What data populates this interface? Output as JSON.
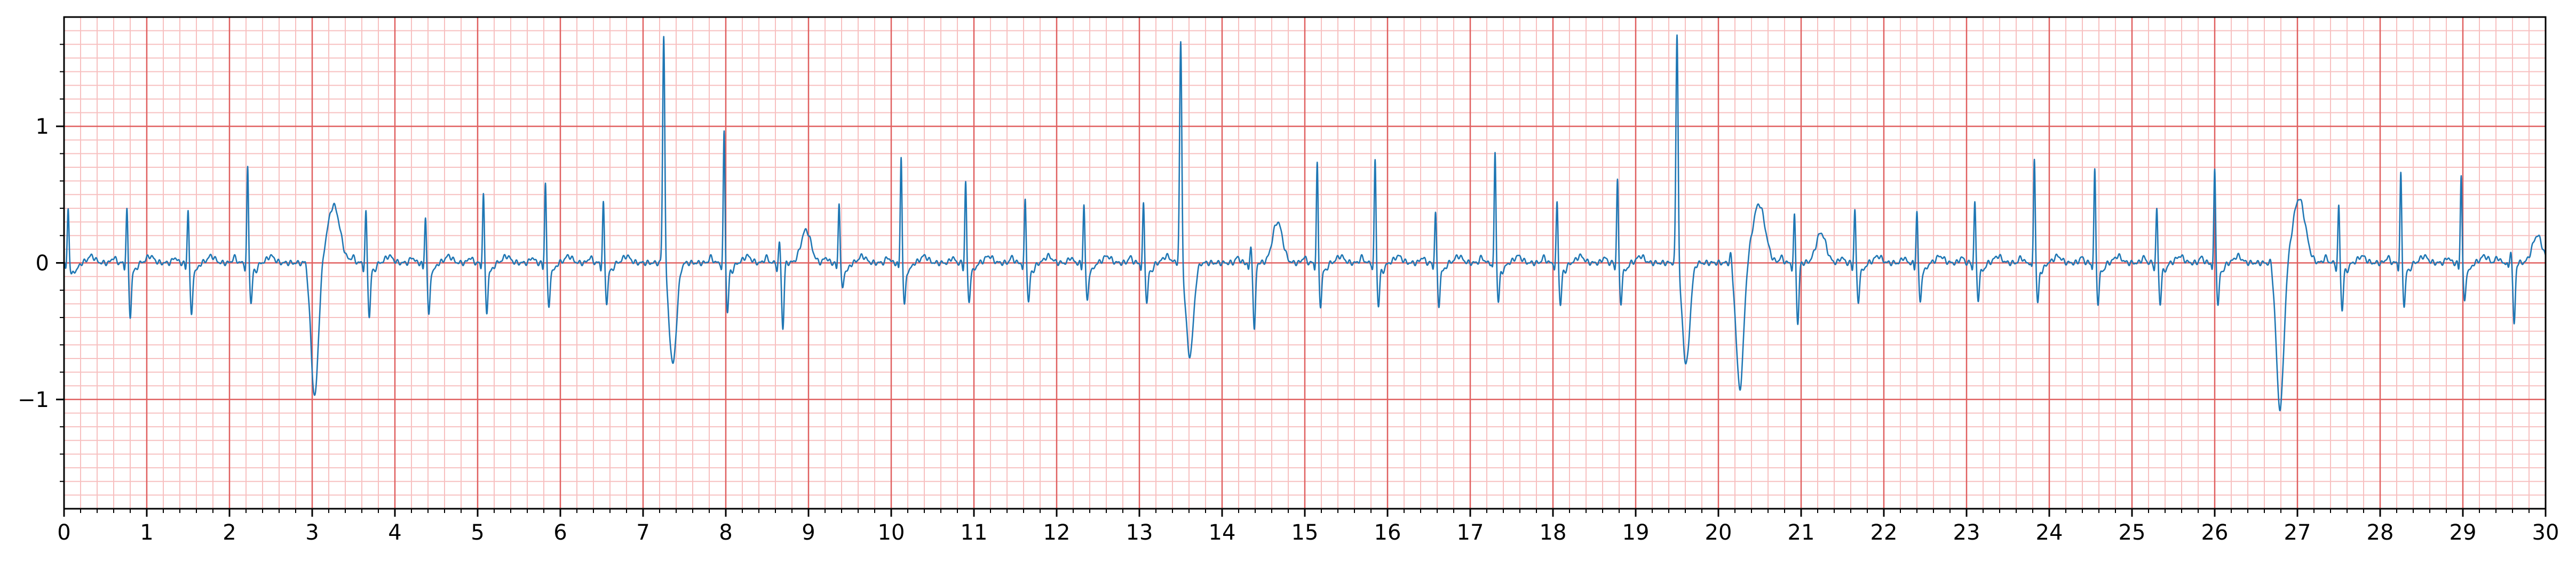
{
  "chart_data": {
    "type": "line",
    "title": "",
    "xlabel": "",
    "ylabel": "",
    "xlim": [
      0,
      30
    ],
    "ylim": [
      -1.8,
      1.8
    ],
    "x_ticks": [
      0,
      1,
      2,
      3,
      4,
      5,
      6,
      7,
      8,
      9,
      10,
      11,
      12,
      13,
      14,
      15,
      16,
      17,
      18,
      19,
      20,
      21,
      22,
      23,
      24,
      25,
      26,
      27,
      28,
      29,
      30
    ],
    "x_tick_labels": [
      "0",
      "1",
      "2",
      "3",
      "4",
      "5",
      "6",
      "7",
      "8",
      "9",
      "10",
      "11",
      "12",
      "13",
      "14",
      "15",
      "16",
      "17",
      "18",
      "19",
      "20",
      "21",
      "22",
      "23",
      "24",
      "25",
      "26",
      "27",
      "28",
      "29",
      "30"
    ],
    "y_ticks": [
      -1,
      0,
      1
    ],
    "y_tick_labels": [
      "−1",
      "0",
      "1"
    ],
    "grid": {
      "major": true,
      "minor": true,
      "major_x_step": 1,
      "major_y_step": 1,
      "minor_x_step": 0.2,
      "minor_y_step": 0.1,
      "major_color": "#e06060",
      "minor_color": "#f7c0c0"
    },
    "series": [
      {
        "color": "#1f77b4",
        "beats": [
          {
            "t": 0.05,
            "kind": "normal",
            "r": 0.4,
            "s": -0.08
          },
          {
            "t": 0.76,
            "kind": "normal",
            "r": 0.4,
            "s": -0.38
          },
          {
            "t": 1.5,
            "kind": "normal",
            "r": 0.4,
            "s": -0.38
          },
          {
            "t": 2.22,
            "kind": "normal",
            "r": 0.7,
            "s": -0.28
          },
          {
            "t": 2.92,
            "kind": "pvc",
            "r": 0.05,
            "s": -0.98,
            "t_wave": 0.42
          },
          {
            "t": 3.65,
            "kind": "normal",
            "r": 0.37,
            "s": -0.38
          },
          {
            "t": 4.37,
            "kind": "normal",
            "r": 0.34,
            "s": -0.38
          },
          {
            "t": 5.07,
            "kind": "normal",
            "r": 0.52,
            "s": -0.35
          },
          {
            "t": 5.82,
            "kind": "normal",
            "r": 0.6,
            "s": -0.32
          },
          {
            "t": 6.52,
            "kind": "normal",
            "r": 0.44,
            "s": -0.28
          },
          {
            "t": 7.25,
            "kind": "pvc",
            "r": 1.7,
            "s": -0.74
          },
          {
            "t": 7.98,
            "kind": "normal",
            "r": 0.97,
            "s": -0.35
          },
          {
            "t": 8.65,
            "kind": "normal",
            "r": 0.15,
            "s": -0.48,
            "t_wave": 0.24
          },
          {
            "t": 9.37,
            "kind": "normal",
            "r": 0.45,
            "s": -0.18
          },
          {
            "t": 10.12,
            "kind": "normal",
            "r": 0.78,
            "s": -0.3
          },
          {
            "t": 10.9,
            "kind": "normal",
            "r": 0.6,
            "s": -0.28
          },
          {
            "t": 11.62,
            "kind": "normal",
            "r": 0.47,
            "s": -0.28
          },
          {
            "t": 12.33,
            "kind": "normal",
            "r": 0.43,
            "s": -0.27
          },
          {
            "t": 13.05,
            "kind": "normal",
            "r": 0.43,
            "s": -0.28
          },
          {
            "t": 13.5,
            "kind": "pvc",
            "r": 1.65,
            "s": -0.68
          },
          {
            "t": 14.35,
            "kind": "normal",
            "r": 0.12,
            "s": -0.5,
            "t_wave": 0.3
          },
          {
            "t": 15.15,
            "kind": "normal",
            "r": 0.73,
            "s": -0.3
          },
          {
            "t": 15.85,
            "kind": "normal",
            "r": 0.76,
            "s": -0.3
          },
          {
            "t": 16.58,
            "kind": "normal",
            "r": 0.38,
            "s": -0.3
          },
          {
            "t": 17.3,
            "kind": "normal",
            "r": 0.82,
            "s": -0.27
          },
          {
            "t": 18.05,
            "kind": "normal",
            "r": 0.45,
            "s": -0.3
          },
          {
            "t": 18.78,
            "kind": "normal",
            "r": 0.62,
            "s": -0.28
          },
          {
            "t": 19.5,
            "kind": "pvc",
            "r": 1.72,
            "s": -0.74
          },
          {
            "t": 20.15,
            "kind": "pvc",
            "r": 0.1,
            "s": -0.92,
            "t_wave": 0.43
          },
          {
            "t": 20.92,
            "kind": "normal",
            "r": 0.35,
            "s": -0.45,
            "t_wave": 0.22
          },
          {
            "t": 21.65,
            "kind": "normal",
            "r": 0.4,
            "s": -0.28
          },
          {
            "t": 22.4,
            "kind": "normal",
            "r": 0.38,
            "s": -0.28
          },
          {
            "t": 23.1,
            "kind": "normal",
            "r": 0.45,
            "s": -0.25
          },
          {
            "t": 23.82,
            "kind": "normal",
            "r": 0.78,
            "s": -0.28
          },
          {
            "t": 24.55,
            "kind": "normal",
            "r": 0.68,
            "s": -0.28
          },
          {
            "t": 25.3,
            "kind": "normal",
            "r": 0.4,
            "s": -0.28
          },
          {
            "t": 26.0,
            "kind": "normal",
            "r": 0.68,
            "s": -0.3
          },
          {
            "t": 26.68,
            "kind": "pvc",
            "r": 0.05,
            "s": -1.07,
            "t_wave": 0.47
          },
          {
            "t": 27.5,
            "kind": "normal",
            "r": 0.42,
            "s": -0.33
          },
          {
            "t": 28.25,
            "kind": "normal",
            "r": 0.65,
            "s": -0.3
          },
          {
            "t": 28.98,
            "kind": "normal",
            "r": 0.65,
            "s": -0.28
          },
          {
            "t": 29.58,
            "kind": "normal",
            "r": 0.1,
            "s": -0.45,
            "t_wave": 0.2
          }
        ]
      }
    ]
  }
}
